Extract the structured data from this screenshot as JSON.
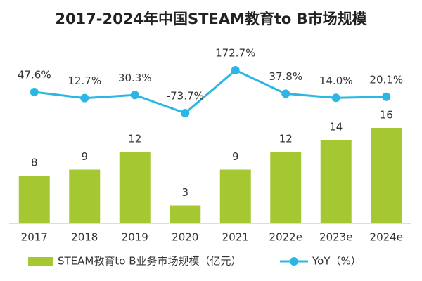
{
  "chart_data": {
    "type": "bar",
    "title": "2017-2024年中国STEAM教育to B市场规模",
    "categories": [
      "2017",
      "2018",
      "2019",
      "2020",
      "2021",
      "2022e",
      "2023e",
      "2024e"
    ],
    "series": [
      {
        "name": "STEAM教育to B业务市场规模（亿元）",
        "color": "#a5c832",
        "values": [
          8,
          9,
          12,
          3,
          9,
          12,
          14,
          16
        ]
      },
      {
        "name": "YoY（%）",
        "type": "line",
        "axis": "y2",
        "color": "#2bb7e6",
        "values": [
          47.6,
          12.7,
          30.3,
          -73.7,
          172.7,
          37.8,
          14.0,
          20.1
        ],
        "value_labels": [
          "47.6%",
          "12.7%",
          "30.3%",
          "-73.7%",
          "172.7%",
          "37.8%",
          "14.0%",
          "20.1%"
        ]
      }
    ],
    "ylim": [
      0,
      32
    ],
    "y2lim": [
      -708,
      391
    ],
    "legend": "bottom"
  }
}
